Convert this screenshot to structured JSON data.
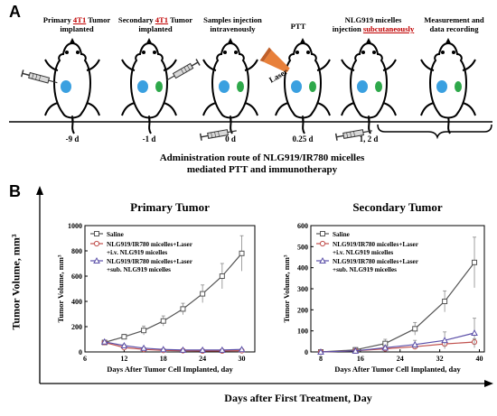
{
  "panel_a": {
    "letter": "A",
    "steps": [
      {
        "pre": "Primary ",
        "hl": "4T1",
        "post": " Tumor",
        "line2": "implanted",
        "day": "-9 d"
      },
      {
        "pre": "Secondary ",
        "hl": "4T1",
        "post": " Tumor",
        "line2": "implanted",
        "day": "-1 d"
      },
      {
        "pre": "Samples injection",
        "hl": "",
        "post": "",
        "line2": "intravenously",
        "day": "0 d"
      },
      {
        "pre": "PTT",
        "hl": "",
        "post": "",
        "line2": "",
        "day": "0.25 d"
      },
      {
        "pre": "NLG919 micelles",
        "hl": "",
        "post": "",
        "line2_pre": "injection ",
        "line2_hl": "subcutaneously",
        "day": "1, 2 d"
      },
      {
        "pre": "Measurement and",
        "hl": "",
        "post": "",
        "line2": "data recording",
        "day": ""
      }
    ],
    "laser_label": "Laser",
    "route_line1": "Administration route of NLG919/IR780 micelles",
    "route_line2": "mediated PTT and immunotherapy"
  },
  "panel_b": {
    "letter": "B",
    "outer_ylabel": "Tumor Volume, mm³",
    "outer_xlabel": "Days after First Treatment, Day"
  },
  "colors": {
    "saline": "#555555",
    "laser_iv": "#c0504d",
    "laser_sub": "#5b4fa8",
    "tumor_primary": "#3aa0e0",
    "tumor_secondary": "#2ea84a",
    "highlight": "#c00000"
  },
  "chart_data": [
    {
      "type": "line",
      "title": "Primary Tumor",
      "xlabel": "Days After Tumor Cell Implanted, day",
      "ylabel": "Tumor Volume, mm³",
      "xlim": [
        6,
        32
      ],
      "ylim": [
        0,
        1000
      ],
      "xticks": [
        6,
        12,
        18,
        24,
        30
      ],
      "yticks": [
        0,
        200,
        400,
        600,
        800,
        1000
      ],
      "legend_position": "top-left",
      "series": [
        {
          "name": "Saline",
          "marker": "square",
          "x": [
            9,
            12,
            15,
            18,
            21,
            24,
            27,
            30
          ],
          "y": [
            75,
            120,
            170,
            245,
            340,
            460,
            600,
            780
          ],
          "err": [
            15,
            20,
            35,
            40,
            45,
            70,
            100,
            140
          ]
        },
        {
          "name": "NLG919/IR780 micelles+Laser +i.v. NLG919 micelles",
          "marker": "circle",
          "x": [
            9,
            12,
            15,
            18,
            21,
            24,
            27,
            30
          ],
          "y": [
            75,
            35,
            20,
            12,
            10,
            8,
            8,
            10
          ],
          "err": [
            10,
            8,
            6,
            5,
            4,
            4,
            4,
            5
          ]
        },
        {
          "name": "NLG919/IR780 micelles+Laser +sub. NLG919 micelles",
          "marker": "triangle",
          "x": [
            9,
            12,
            15,
            18,
            21,
            24,
            27,
            30
          ],
          "y": [
            80,
            50,
            30,
            20,
            15,
            15,
            15,
            20
          ],
          "err": [
            10,
            10,
            8,
            6,
            5,
            5,
            6,
            6
          ]
        }
      ]
    },
    {
      "type": "line",
      "title": "Secondary Tumor",
      "xlabel": "Days After Tumor Cell Implanted, day",
      "ylabel": "Tumor Volume, mm³",
      "xlim": [
        6,
        41
      ],
      "ylim": [
        0,
        600
      ],
      "xticks": [
        8,
        16,
        24,
        32,
        40
      ],
      "yticks": [
        0,
        100,
        200,
        300,
        400,
        500,
        600
      ],
      "legend_position": "top-left",
      "series": [
        {
          "name": "Saline",
          "marker": "square",
          "x": [
            8,
            15,
            21,
            27,
            33,
            39
          ],
          "y": [
            0,
            10,
            40,
            110,
            240,
            425
          ],
          "err": [
            2,
            5,
            20,
            30,
            50,
            120
          ]
        },
        {
          "name": "NLG919/IR780 micelles+Laser +i.v. NLG919 micelles",
          "marker": "circle",
          "x": [
            8,
            15,
            21,
            27,
            33,
            39
          ],
          "y": [
            0,
            5,
            15,
            25,
            38,
            47
          ],
          "err": [
            2,
            3,
            8,
            10,
            12,
            15
          ]
        },
        {
          "name": "NLG919/IR780 micelles+Laser +sub. NLG919 micelles",
          "marker": "triangle",
          "x": [
            8,
            15,
            21,
            27,
            33,
            39
          ],
          "y": [
            0,
            5,
            20,
            35,
            55,
            90
          ],
          "err": [
            2,
            4,
            10,
            20,
            40,
            70
          ]
        }
      ]
    }
  ]
}
